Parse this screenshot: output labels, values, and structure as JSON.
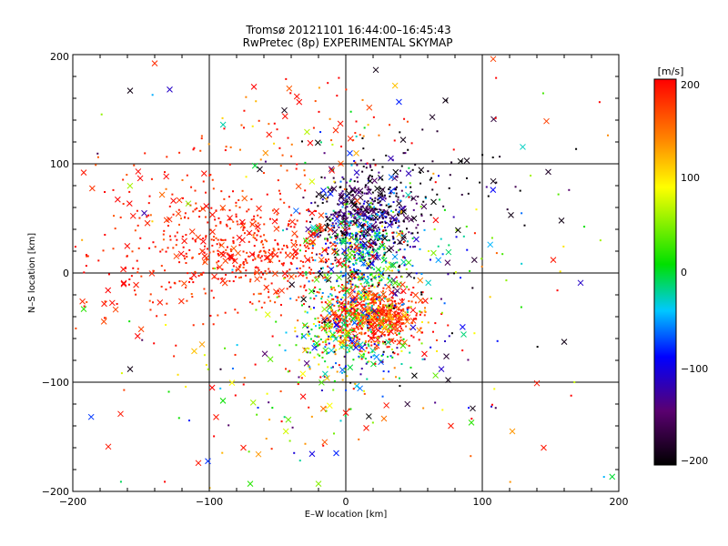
{
  "chart_data": {
    "type": "scatter",
    "title": "Tromsø 20121101 16:44:00–16:45:43",
    "subtitle": "RwPretec (8p) EXPERIMENTAL SKYMAP",
    "xlabel": "E–W location [km]",
    "ylabel": "N–S location [km]",
    "xlim": [
      -200,
      200
    ],
    "ylim": [
      -200,
      200
    ],
    "xticks": [
      "−200",
      "−100",
      "0",
      "100",
      "200"
    ],
    "yticks": [
      "−200",
      "−100",
      "0",
      "100",
      "200"
    ],
    "grid": true,
    "colorbar": {
      "unit": "[m/s]",
      "min": -200,
      "max": 200,
      "ticks": [
        "200",
        "100",
        "0",
        "−100",
        "−200"
      ],
      "colormap": [
        "#000000",
        "#5a0070",
        "#0000ff",
        "#00c8ff",
        "#00e000",
        "#ffff00",
        "#ff8000",
        "#ff0000"
      ]
    },
    "clusters": [
      {
        "region": "central-north",
        "x_range": [
          -20,
          50
        ],
        "y_range": [
          20,
          90
        ],
        "velocity": "negative (black/blue)"
      },
      {
        "region": "west",
        "x_range": [
          -140,
          -10
        ],
        "y_range": [
          -10,
          60
        ],
        "velocity": "positive (red)"
      },
      {
        "region": "central-south",
        "x_range": [
          -20,
          50
        ],
        "y_range": [
          -80,
          -20
        ],
        "velocity": "positive (red) mixed with green"
      }
    ],
    "samples": [
      {
        "x": -140,
        "y": 192,
        "v": 180,
        "m": "x"
      },
      {
        "x": -158,
        "y": 167,
        "v": -190,
        "m": "x"
      },
      {
        "x": -129,
        "y": 168,
        "v": -110,
        "m": "x"
      },
      {
        "x": 22,
        "y": 186,
        "v": -190,
        "m": "x"
      },
      {
        "x": 73,
        "y": 158,
        "v": -190,
        "m": "x"
      },
      {
        "x": 108,
        "y": 196,
        "v": 170,
        "m": "x"
      },
      {
        "x": 147,
        "y": 139,
        "v": 170,
        "m": "x"
      },
      {
        "x": 42,
        "y": 122,
        "v": -190,
        "m": "x"
      },
      {
        "x": 108,
        "y": 84,
        "v": -190,
        "m": "x"
      },
      {
        "x": 121,
        "y": 53,
        "v": -190,
        "m": "x"
      },
      {
        "x": 158,
        "y": 48,
        "v": -190,
        "m": "x"
      },
      {
        "x": 152,
        "y": 12,
        "v": 190,
        "m": "x"
      },
      {
        "x": 172,
        "y": -9,
        "v": -110,
        "m": "x"
      },
      {
        "x": 160,
        "y": -63,
        "v": -190,
        "m": "x"
      },
      {
        "x": 140,
        "y": -101,
        "v": 190,
        "m": "x"
      },
      {
        "x": 93,
        "y": -124,
        "v": -190,
        "m": "x"
      },
      {
        "x": 92,
        "y": -137,
        "v": 20,
        "m": "x"
      },
      {
        "x": 122,
        "y": -145,
        "v": 130,
        "m": "x"
      },
      {
        "x": 145,
        "y": -160,
        "v": 190,
        "m": "x"
      },
      {
        "x": -158,
        "y": -88,
        "v": -190,
        "m": "x"
      },
      {
        "x": -165,
        "y": -129,
        "v": 190,
        "m": "x"
      },
      {
        "x": -174,
        "y": -159,
        "v": 190,
        "m": "x"
      },
      {
        "x": -108,
        "y": -174,
        "v": 190,
        "m": "x"
      },
      {
        "x": -90,
        "y": -117,
        "v": 10,
        "m": "x"
      },
      {
        "x": -95,
        "y": -132,
        "v": 190,
        "m": "x"
      },
      {
        "x": -75,
        "y": -160,
        "v": 190,
        "m": "x"
      },
      {
        "x": -64,
        "y": -166,
        "v": 130,
        "m": "x"
      },
      {
        "x": -70,
        "y": -193,
        "v": 20,
        "m": "x"
      },
      {
        "x": -20,
        "y": -193,
        "v": 50,
        "m": "x"
      },
      {
        "x": -7,
        "y": -165,
        "v": -80,
        "m": "x"
      },
      {
        "x": 0,
        "y": -128,
        "v": 190,
        "m": "x"
      },
      {
        "x": 15,
        "y": -142,
        "v": 190,
        "m": "x"
      },
      {
        "x": 77,
        "y": -140,
        "v": 190,
        "m": "x"
      },
      {
        "x": -192,
        "y": -33,
        "v": 20,
        "m": "x"
      },
      {
        "x": -192,
        "y": 92,
        "v": 190,
        "m": "x"
      },
      {
        "x": -45,
        "y": 149,
        "v": -190,
        "m": "x"
      },
      {
        "x": -63,
        "y": 95,
        "v": -190,
        "m": "x"
      },
      {
        "x": 8,
        "y": 92,
        "v": -110,
        "m": "x"
      },
      {
        "x": 50,
        "y": 50,
        "v": -190,
        "m": "x"
      },
      {
        "x": 75,
        "y": -98,
        "v": -190,
        "m": "x"
      },
      {
        "x": 70,
        "y": -88,
        "v": -110,
        "m": "x"
      }
    ]
  }
}
